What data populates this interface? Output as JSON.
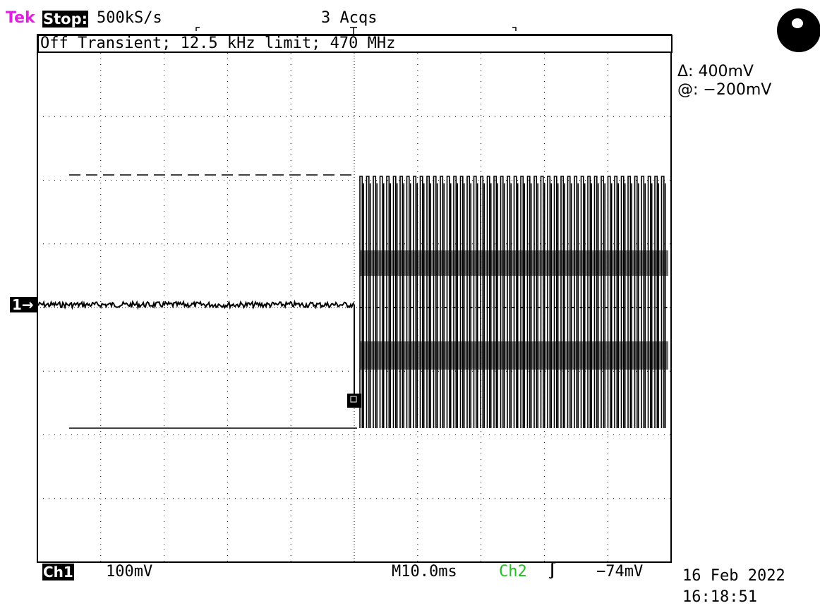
{
  "header": {
    "brand": "Tek",
    "brand_color": "#e020e0",
    "run_status": "Stop:",
    "sample_rate": "500kS/s",
    "acquisitions": "3 Acqs",
    "menu_title": "Off Transient; 12.5 kHz limit; 470 MHz"
  },
  "cursors": {
    "delta": "Δ: 400mV",
    "position": "@: −200mV"
  },
  "channel": {
    "marker": "1→",
    "name": "Ch1",
    "volts_per_div": "100mV"
  },
  "timebase": {
    "time_per_div": "M10.0ms"
  },
  "trigger": {
    "source": "Ch2",
    "source_color": "#20c020",
    "edge": "∫",
    "level": "−74mV"
  },
  "timestamp": {
    "date": "16 Feb 2022",
    "time": "16:18:51"
  },
  "icons": {
    "status_indicator": "acquisition-status-icon",
    "trigger_marker": "trigger-position-icon"
  },
  "scope": {
    "divisions_x": 10,
    "divisions_y": 8,
    "transient_start_fraction": 0.5,
    "pulse_count": 46
  }
}
